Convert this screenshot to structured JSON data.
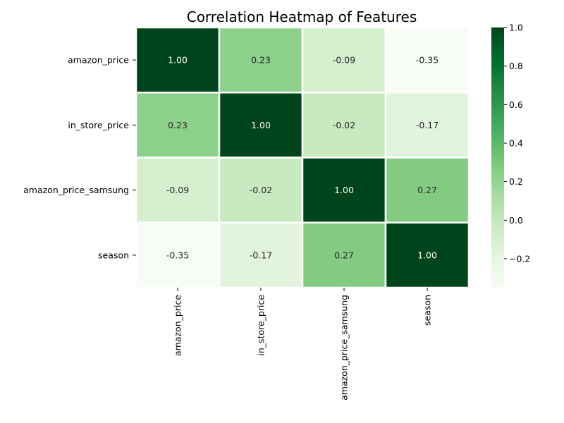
{
  "chart_data": {
    "type": "heatmap",
    "title": "Correlation Heatmap of Features",
    "xlabel": "",
    "ylabel": "",
    "rows": [
      "amazon_price",
      "in_store_price",
      "amazon_price_samsung",
      "season"
    ],
    "columns": [
      "amazon_price",
      "in_store_price",
      "amazon_price_samsung",
      "season"
    ],
    "values": [
      [
        1.0,
        0.23,
        -0.09,
        -0.35
      ],
      [
        0.23,
        1.0,
        -0.02,
        -0.17
      ],
      [
        -0.09,
        -0.02,
        1.0,
        0.27
      ],
      [
        -0.35,
        -0.17,
        0.27,
        1.0
      ]
    ],
    "value_format": "0.00",
    "annotations": [
      [
        "1.00",
        "0.23",
        "-0.09",
        "-0.35"
      ],
      [
        "0.23",
        "1.00",
        "-0.02",
        "-0.17"
      ],
      [
        "-0.09",
        "-0.02",
        "1.00",
        "0.27"
      ],
      [
        "-0.35",
        "-0.17",
        "0.27",
        "1.00"
      ]
    ],
    "colormap": "Greens",
    "colormap_stops": [
      "#f7fcf5",
      "#e5f5e0",
      "#c7e9c0",
      "#a1d99b",
      "#74c476",
      "#41ab5d",
      "#238b45",
      "#006d2c",
      "#00441b"
    ],
    "cell_border_color": "#ffffff",
    "colorbar": {
      "range": [
        -0.35,
        1.0
      ],
      "ticks": [
        -0.2,
        0.0,
        0.2,
        0.4,
        0.6,
        0.8,
        1.0
      ],
      "tick_labels": [
        "−0.2",
        "0.0",
        "0.2",
        "0.4",
        "0.6",
        "0.8",
        "1.0"
      ]
    }
  }
}
